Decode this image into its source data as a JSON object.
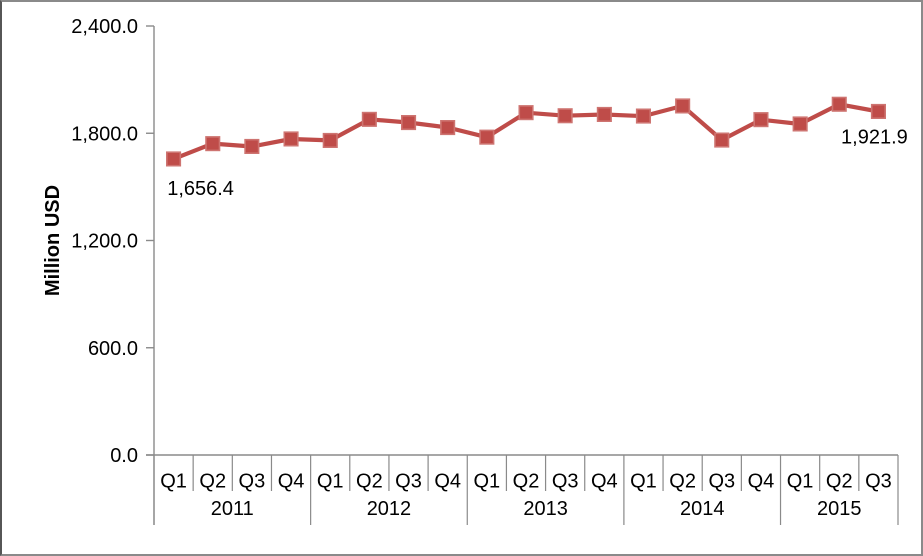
{
  "chart_data": {
    "type": "line",
    "title": "",
    "xlabel": "",
    "ylabel": "Million USD",
    "legend_position": "none",
    "grid": "off",
    "ylim": [
      0,
      2400
    ],
    "y_ticks": [
      {
        "value": 0,
        "label": "0.0"
      },
      {
        "value": 600,
        "label": "600.0"
      },
      {
        "value": 1200,
        "label": "1,200.0"
      },
      {
        "value": 1800,
        "label": "1,800.0"
      },
      {
        "value": 2400,
        "label": "2,400.0"
      }
    ],
    "x_categories": [
      {
        "label": "2011",
        "quarters": [
          "Q1",
          "Q2",
          "Q3",
          "Q4"
        ]
      },
      {
        "label": "2012",
        "quarters": [
          "Q1",
          "Q2",
          "Q3",
          "Q4"
        ]
      },
      {
        "label": "2013",
        "quarters": [
          "Q1",
          "Q2",
          "Q3",
          "Q4"
        ]
      },
      {
        "label": "2014",
        "quarters": [
          "Q1",
          "Q2",
          "Q3",
          "Q4"
        ]
      },
      {
        "label": "2015",
        "quarters": [
          "Q1",
          "Q2",
          "Q3"
        ]
      }
    ],
    "series": [
      {
        "name": "",
        "marker": "square",
        "values": [
          1656.4,
          1742,
          1726,
          1768,
          1760,
          1878,
          1860,
          1832,
          1778,
          1915,
          1898,
          1905,
          1896,
          1953,
          1762,
          1876,
          1852,
          1962,
          1921.9
        ]
      }
    ],
    "point_labels": [
      {
        "point_index": 0,
        "text": "1,656.4",
        "placement": "below-right"
      },
      {
        "point_index": 18,
        "text": "1,921.9",
        "placement": "below-left"
      }
    ]
  },
  "colors": {
    "series_line": "#BF4C49",
    "marker_fill": "#BF4C49",
    "marker_border": "#CE7471",
    "axis_line": "#8A8A8A",
    "axis_text": "#000000",
    "data_label_text": "#000000",
    "frame_border": "#8A8A8A",
    "background": "#FFFFFF"
  }
}
